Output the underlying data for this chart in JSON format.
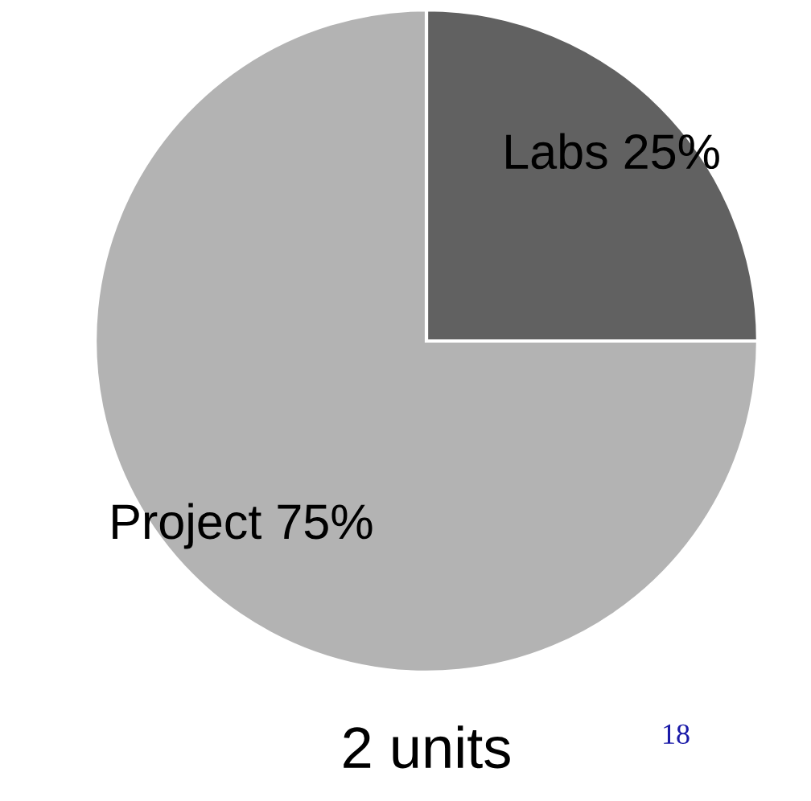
{
  "chart_data": {
    "type": "pie",
    "categories": [
      "Labs",
      "Project"
    ],
    "values": [
      25,
      75
    ],
    "value_labels": [
      "25%",
      "75%"
    ],
    "colors": [
      "#616161",
      "#b3b3b3"
    ],
    "annotations": [
      "2 units",
      "18"
    ],
    "legend": false
  }
}
